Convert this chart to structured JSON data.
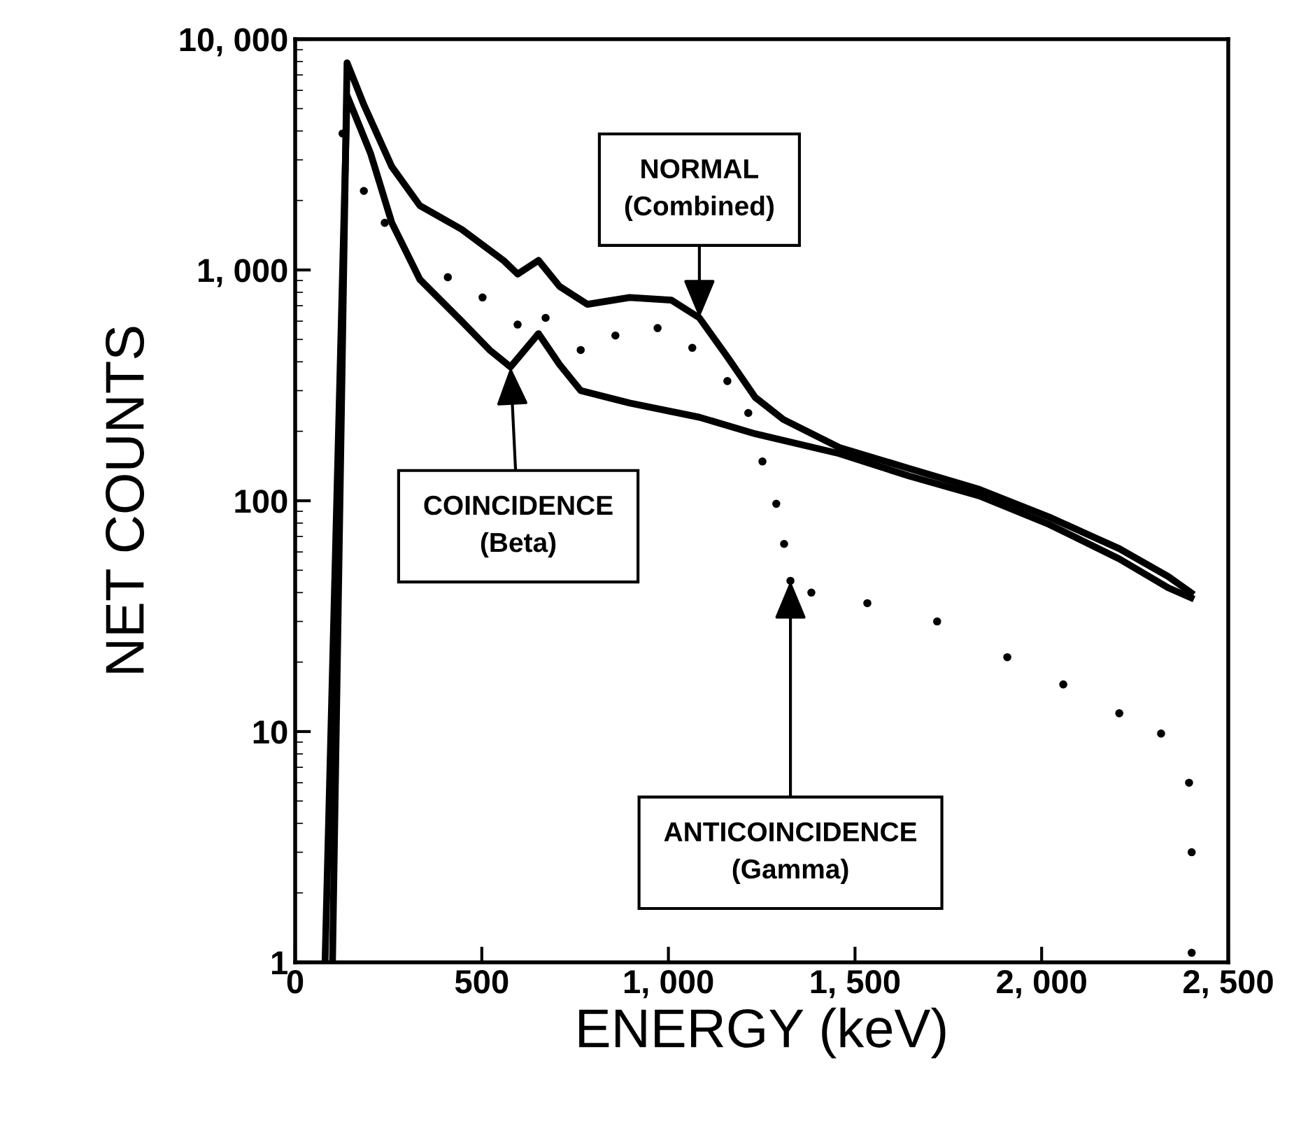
{
  "chart_data": {
    "type": "line",
    "xlabel": "ENERGY (keV)",
    "ylabel": "NET COUNTS",
    "log": "y",
    "xlim": [
      0,
      2500
    ],
    "ylim": [
      1,
      10000
    ],
    "xticks": [
      0,
      500,
      {
        "value": 1000,
        "label": "1, 000"
      },
      {
        "value": 1500,
        "label": "1, 500"
      },
      {
        "value": 2000,
        "label": "2, 000"
      },
      {
        "value": 2500,
        "label": "2, 500"
      }
    ],
    "yticks": [
      1,
      10,
      100,
      {
        "value": 1000,
        "label": "1, 000"
      },
      {
        "value": 10000,
        "label": "10, 000"
      }
    ],
    "grid": false,
    "legend": false,
    "series": [
      {
        "color": "#000000",
        "x": [
          100,
          139,
          184,
          259,
          334,
          446,
          558,
          596,
          652,
          708,
          783,
          896,
          1008,
          1083,
          1158,
          1233,
          1308,
          1458,
          1645,
          1833,
          2020,
          2208,
          2339,
          2400
        ],
        "values": [
          1,
          7900,
          5200,
          2800,
          1900,
          1500,
          1100,
          960,
          1100,
          850,
          710,
          760,
          740,
          620,
          420,
          280,
          225,
          170,
          138,
          112,
          85,
          62,
          47,
          40
        ]
      },
      {
        "color": "#000000",
        "x": [
          80,
          139,
          202,
          259,
          334,
          446,
          521,
          577,
          652,
          708,
          765,
          896,
          1083,
          1233,
          1458,
          1645,
          1833,
          2020,
          2208,
          2339,
          2400
        ],
        "values": [
          1,
          5700,
          3200,
          1600,
          910,
          600,
          450,
          380,
          530,
          390,
          300,
          265,
          230,
          195,
          160,
          128,
          105,
          79,
          56,
          42,
          38
        ]
      },
      {
        "type": "scatter",
        "color": "#000000",
        "x": [
          127,
          184,
          240,
          409,
          502,
          596,
          671,
          765,
          858,
          971,
          1064,
          1158,
          1214,
          1252,
          1289,
          1310,
          1327,
          1383,
          1533,
          1720,
          1908,
          2058,
          2208,
          2320,
          2395,
          2402,
          2402
        ],
        "values": [
          3900,
          2200,
          1600,
          930,
          760,
          580,
          620,
          450,
          520,
          560,
          460,
          330,
          240,
          148,
          97,
          65,
          45,
          40,
          36,
          30,
          21,
          16,
          12,
          9.8,
          6,
          3,
          1.1
        ]
      }
    ],
    "annotations": [
      {
        "text": "NORMAL\n(Combined)",
        "x": 1083,
        "y": 620
      },
      {
        "text": "COINCIDENCE\n(Beta)",
        "x": 577,
        "y": 380
      },
      {
        "text": "ANTICOINCIDENCE\n(Gamma)",
        "x": 1327,
        "y": 45
      }
    ]
  }
}
